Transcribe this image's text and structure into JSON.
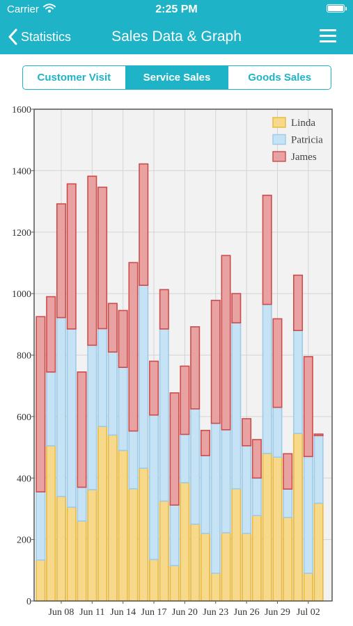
{
  "status_bar": {
    "carrier": "Carrier",
    "time": "2:25 PM"
  },
  "nav": {
    "back_label": "Statistics",
    "title": "Sales Data & Graph"
  },
  "tabs": [
    {
      "label": "Customer Visit",
      "active": false
    },
    {
      "label": "Service Sales",
      "active": true
    },
    {
      "label": "Goods Sales",
      "active": false
    }
  ],
  "colors": {
    "header": "#1eb3c6",
    "linda_fill": "#f7d98b",
    "linda_stroke": "#e8b93c",
    "patricia_fill": "#c6e2f5",
    "patricia_stroke": "#9ecbe8",
    "james_fill": "#e8a2a2",
    "james_stroke": "#cd4b4b"
  },
  "chart_data": {
    "type": "bar",
    "stacked": true,
    "ylim": [
      0,
      1600
    ],
    "yticks": [
      "0",
      "200",
      "400",
      "600",
      "800",
      "1000",
      "1200",
      "1400",
      "1600"
    ],
    "xtick_labels": [
      "Jun 08",
      "Jun 11",
      "Jun 14",
      "Jun 17",
      "Jun 20",
      "Jun 23",
      "Jun 26",
      "Jun 29",
      "Jul 02"
    ],
    "grid": true,
    "legend_position": "top-right",
    "series": [
      {
        "name": "Linda",
        "values": [
          133,
          505,
          340,
          305,
          260,
          362,
          568,
          540,
          490,
          365,
          432,
          135,
          325,
          115,
          385,
          250,
          220,
          90,
          222,
          365,
          220,
          278,
          480,
          468,
          272,
          545,
          90,
          318
        ]
      },
      {
        "name": "Patricia",
        "values": [
          222,
          240,
          582,
          580,
          110,
          470,
          318,
          270,
          270,
          188,
          595,
          470,
          560,
          197,
          157,
          375,
          253,
          488,
          335,
          540,
          285,
          122,
          485,
          162,
          92,
          335,
          380,
          220
        ]
      },
      {
        "name": "James",
        "values": [
          570,
          245,
          370,
          472,
          375,
          550,
          460,
          158,
          185,
          548,
          395,
          175,
          128,
          365,
          222,
          267,
          82,
          400,
          567,
          95,
          88,
          125,
          355,
          288,
          115,
          180,
          325,
          5
        ]
      }
    ]
  }
}
